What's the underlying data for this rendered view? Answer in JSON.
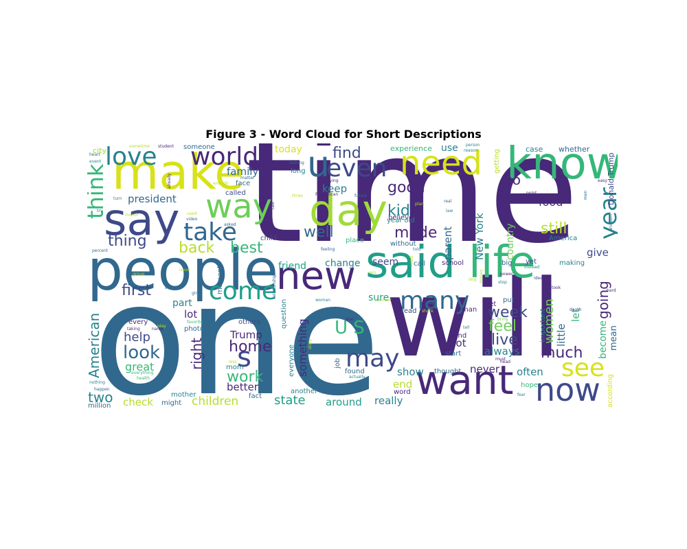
{
  "figure": {
    "title": "Figure 3 - Word Cloud for Short Descriptions"
  },
  "palette": [
    "#440154",
    "#482878",
    "#3e4989",
    "#31688e",
    "#26828e",
    "#1f9e89",
    "#35b779",
    "#6ece58",
    "#b5de2b",
    "#fde725"
  ],
  "words": [
    {
      "id": "time",
      "text": "time",
      "color": "#482878"
    },
    {
      "id": "one",
      "text": "one",
      "color": "#31688e"
    },
    {
      "id": "will",
      "text": "will",
      "color": "#482878"
    },
    {
      "id": "people",
      "text": "people",
      "color": "#31688e"
    },
    {
      "id": "make",
      "text": "make",
      "color": "#d7e219"
    },
    {
      "id": "know",
      "text": "know",
      "color": "#35b779"
    },
    {
      "id": "said",
      "text": "said",
      "color": "#1f9e89"
    },
    {
      "id": "life",
      "text": "life",
      "color": "#35b779"
    },
    {
      "id": "new",
      "text": "new",
      "color": "#482878"
    },
    {
      "id": "say",
      "text": "say",
      "color": "#3e4989"
    },
    {
      "id": "day",
      "text": "day",
      "color": "#a0da39"
    },
    {
      "id": "need",
      "text": "need",
      "color": "#d7e219"
    },
    {
      "id": "want",
      "text": "want",
      "color": "#482878"
    },
    {
      "id": "now",
      "text": "now",
      "color": "#3e4989"
    },
    {
      "id": "way",
      "text": "way",
      "color": "#6ece58"
    },
    {
      "id": "u",
      "text": "u",
      "color": "#31688e"
    },
    {
      "id": "world",
      "text": "world",
      "color": "#482878"
    },
    {
      "id": "love",
      "text": "love",
      "color": "#26828e"
    },
    {
      "id": "even",
      "text": "even",
      "color": "#3e4989"
    },
    {
      "id": "think",
      "text": "think",
      "color": "#35b779"
    },
    {
      "id": "take",
      "text": "take",
      "color": "#31688e"
    },
    {
      "id": "come",
      "text": "come",
      "color": "#1f9e89"
    },
    {
      "id": "many",
      "text": "many",
      "color": "#31688e"
    },
    {
      "id": "may",
      "text": "may",
      "color": "#3e4989"
    },
    {
      "id": "year",
      "text": "year",
      "color": "#26828e"
    },
    {
      "id": "see",
      "text": "see",
      "color": "#d7e219"
    },
    {
      "id": "s",
      "text": "s",
      "color": "#3e4989"
    },
    {
      "id": "us",
      "text": "U S",
      "color": "#35b779"
    },
    {
      "id": "look",
      "text": "look",
      "color": "#31688e"
    },
    {
      "id": "best",
      "text": "best",
      "color": "#35b779"
    },
    {
      "id": "back",
      "text": "back",
      "color": "#b5de2b"
    },
    {
      "id": "thing",
      "text": "thing",
      "color": "#3e4989"
    },
    {
      "id": "first",
      "text": "first",
      "color": "#3e4989"
    },
    {
      "id": "find",
      "text": "find",
      "color": "#3e4989"
    },
    {
      "id": "well",
      "text": "well",
      "color": "#31688e"
    },
    {
      "id": "made",
      "text": "made",
      "color": "#482878"
    },
    {
      "id": "kid",
      "text": "kid",
      "color": "#26828e"
    },
    {
      "id": "good",
      "text": "good",
      "color": "#482878"
    },
    {
      "id": "still",
      "text": "still",
      "color": "#b5de2b"
    },
    {
      "id": "work",
      "text": "work",
      "color": "#35b779"
    },
    {
      "id": "feel",
      "text": "feel",
      "color": "#6ece58"
    },
    {
      "id": "much",
      "text": "much",
      "color": "#482878"
    },
    {
      "id": "live",
      "text": "live",
      "color": "#3e4989"
    },
    {
      "id": "week",
      "text": "week",
      "color": "#3e4989"
    },
    {
      "id": "home",
      "text": "home",
      "color": "#482878"
    },
    {
      "id": "help",
      "text": "help",
      "color": "#3e4989"
    },
    {
      "id": "right",
      "text": "right",
      "color": "#482878"
    },
    {
      "id": "going",
      "text": "going",
      "color": "#482878"
    },
    {
      "id": "american",
      "text": "American",
      "color": "#26828e"
    },
    {
      "id": "two",
      "text": "two",
      "color": "#26828e"
    },
    {
      "id": "children",
      "text": "children",
      "color": "#b5de2b"
    },
    {
      "id": "state",
      "text": "state",
      "color": "#1f9e89"
    },
    {
      "id": "great",
      "text": "great",
      "color": "#35b779"
    },
    {
      "id": "trump",
      "text": "Trump",
      "color": "#482878"
    },
    {
      "id": "family",
      "text": "family",
      "color": "#31688e"
    },
    {
      "id": "president",
      "text": "president",
      "color": "#31688e"
    },
    {
      "id": "today",
      "text": "today",
      "color": "#d7e219"
    },
    {
      "id": "food",
      "text": "food",
      "color": "#482878"
    },
    {
      "id": "keep",
      "text": "keep",
      "color": "#26828e"
    },
    {
      "id": "go",
      "text": "go",
      "color": "#482878"
    },
    {
      "id": "women",
      "text": "women",
      "color": "#6ece58"
    },
    {
      "id": "country",
      "text": "country",
      "color": "#6ece58"
    },
    {
      "id": "new-york",
      "text": "New York",
      "color": "#26828e"
    },
    {
      "id": "parent",
      "text": "parent",
      "color": "#31688e"
    },
    {
      "id": "something",
      "text": "something",
      "color": "#482878"
    },
    {
      "id": "better",
      "text": "better",
      "color": "#482878"
    },
    {
      "id": "show",
      "text": "show",
      "color": "#26828e"
    },
    {
      "id": "end",
      "text": "end",
      "color": "#b5de2b"
    },
    {
      "id": "never",
      "text": "never",
      "color": "#482878"
    },
    {
      "id": "often",
      "text": "often",
      "color": "#26828e"
    },
    {
      "id": "always",
      "text": "always",
      "color": "#26828e"
    },
    {
      "id": "got",
      "text": "got",
      "color": "#482878"
    },
    {
      "id": "give",
      "text": "give",
      "color": "#3e4989"
    },
    {
      "id": "let",
      "text": "let",
      "color": "#35b779"
    },
    {
      "id": "little",
      "text": "little",
      "color": "#31688e"
    },
    {
      "id": "become",
      "text": "become",
      "color": "#35b779"
    },
    {
      "id": "mean",
      "text": "mean",
      "color": "#31688e"
    },
    {
      "id": "donald-trump",
      "text": "Donald Trump",
      "color": "#3e4989"
    },
    {
      "id": "check",
      "text": "check",
      "color": "#b5de2b"
    },
    {
      "id": "really",
      "text": "really",
      "color": "#26828e"
    },
    {
      "id": "around",
      "text": "around",
      "color": "#1f9e89"
    },
    {
      "id": "lot",
      "text": "lot",
      "color": "#482878"
    },
    {
      "id": "part",
      "text": "part",
      "color": "#26828e"
    },
    {
      "id": "friend",
      "text": "friend",
      "color": "#1f9e89"
    },
    {
      "id": "change",
      "text": "change",
      "color": "#26828e"
    },
    {
      "id": "seem",
      "text": "seem",
      "color": "#3e4989"
    },
    {
      "id": "sure",
      "text": "sure",
      "color": "#1f9e89"
    },
    {
      "id": "use",
      "text": "use",
      "color": "#26828e"
    },
    {
      "id": "experience",
      "text": "experience",
      "color": "#35b779"
    },
    {
      "id": "someone",
      "text": "someone",
      "color": "#31688e"
    },
    {
      "id": "city",
      "text": "city",
      "color": "#a0da39"
    },
    {
      "id": "case",
      "text": "case",
      "color": "#26828e"
    },
    {
      "id": "whether",
      "text": "whether",
      "color": "#31688e"
    },
    {
      "id": "million",
      "text": "million",
      "color": "#31688e"
    },
    {
      "id": "mother",
      "text": "mother",
      "color": "#26828e"
    },
    {
      "id": "might",
      "text": "might",
      "color": "#31688e"
    },
    {
      "id": "fact",
      "text": "fact",
      "color": "#31688e"
    },
    {
      "id": "another",
      "text": "another",
      "color": "#26828e"
    },
    {
      "id": "called",
      "text": "called",
      "color": "#3e4989"
    },
    {
      "id": "face",
      "text": "face",
      "color": "#31688e"
    },
    {
      "id": "long",
      "text": "long",
      "color": "#26828e"
    },
    {
      "id": "believe",
      "text": "believe",
      "color": "#482878"
    },
    {
      "id": "year-old",
      "text": "year old",
      "color": "#26828e"
    },
    {
      "id": "without",
      "text": "without",
      "color": "#31688e"
    },
    {
      "id": "place",
      "text": "place",
      "color": "#35b779"
    },
    {
      "id": "call",
      "text": "call",
      "color": "#31688e"
    },
    {
      "id": "school",
      "text": "school",
      "color": "#482878"
    },
    {
      "id": "big",
      "text": "big",
      "color": "#31688e"
    },
    {
      "id": "yet",
      "text": "yet",
      "color": "#3e4989"
    },
    {
      "id": "making",
      "text": "making",
      "color": "#26828e"
    },
    {
      "id": "america",
      "text": "America",
      "color": "#26828e"
    },
    {
      "id": "put",
      "text": "put",
      "color": "#31688e"
    },
    {
      "id": "set",
      "text": "set",
      "color": "#482878"
    },
    {
      "id": "read",
      "text": "read",
      "color": "#3e4989"
    },
    {
      "id": "man",
      "text": "man",
      "color": "#482878"
    },
    {
      "id": "mind",
      "text": "mind",
      "color": "#482878"
    },
    {
      "id": "start",
      "text": "start",
      "color": "#31688e"
    },
    {
      "id": "thought",
      "text": "thought",
      "color": "#31688e"
    },
    {
      "id": "found",
      "text": "found",
      "color": "#31688e"
    },
    {
      "id": "word",
      "text": "word",
      "color": "#482878"
    },
    {
      "id": "others",
      "text": "others",
      "color": "#3e4989"
    },
    {
      "id": "child",
      "text": "child",
      "color": "#3e4989"
    },
    {
      "id": "mom",
      "text": "mom",
      "color": "#26828e"
    },
    {
      "id": "photo",
      "text": "photo",
      "color": "#31688e"
    },
    {
      "id": "every",
      "text": "every",
      "color": "#482878"
    },
    {
      "id": "moment",
      "text": "moment",
      "color": "#31688e"
    },
    {
      "id": "question",
      "text": "question",
      "color": "#26828e"
    },
    {
      "id": "everyone",
      "text": "everyone",
      "color": "#26828e"
    },
    {
      "id": "important",
      "text": "important",
      "color": "#26828e"
    },
    {
      "id": "according",
      "text": "according",
      "color": "#d7e219"
    },
    {
      "id": "getting",
      "text": "getting",
      "color": "#b5de2b"
    },
    {
      "id": "hope",
      "text": "hope",
      "color": "#35b779"
    },
    {
      "id": "job",
      "text": "job",
      "color": "#31688e"
    },
    {
      "id": "student",
      "text": "student",
      "color": "#482878"
    },
    {
      "id": "person",
      "text": "person",
      "color": "#26828e"
    },
    {
      "id": "reason",
      "text": "reason",
      "color": "#26828e"
    },
    {
      "id": "trying",
      "text": "trying",
      "color": "#482878"
    },
    {
      "id": "republican",
      "text": "Republican",
      "color": "#482878"
    },
    {
      "id": "future",
      "text": "future",
      "color": "#31688e"
    },
    {
      "id": "real",
      "text": "real",
      "color": "#31688e"
    },
    {
      "id": "law",
      "text": "law",
      "color": "#26828e"
    },
    {
      "id": "told",
      "text": "told",
      "color": "#26828e"
    },
    {
      "id": "power",
      "text": "power",
      "color": "#482878"
    },
    {
      "id": "instead",
      "text": "instead",
      "color": "#26828e"
    },
    {
      "id": "stop",
      "text": "stop",
      "color": "#26828e"
    },
    {
      "id": "took",
      "text": "took",
      "color": "#482878"
    },
    {
      "id": "idea",
      "text": "idea",
      "color": "#3e4989"
    },
    {
      "id": "point",
      "text": "point",
      "color": "#482878"
    },
    {
      "id": "easy",
      "text": "easy",
      "color": "#482878"
    },
    {
      "id": "hard",
      "text": "hard",
      "color": "#482878"
    },
    {
      "id": "death",
      "text": "death",
      "color": "#3e4989"
    },
    {
      "id": "bring",
      "text": "bring",
      "color": "#6ece58"
    },
    {
      "id": "must",
      "text": "must",
      "color": "#482878"
    },
    {
      "id": "head",
      "text": "head",
      "color": "#482878"
    },
    {
      "id": "fear",
      "text": "fear",
      "color": "#26828e"
    },
    {
      "id": "tell",
      "text": "tell",
      "color": "#26828e"
    },
    {
      "id": "top",
      "text": "top",
      "color": "#26828e"
    },
    {
      "id": "share",
      "text": "share",
      "color": "#b5de2b"
    },
    {
      "id": "star",
      "text": "star",
      "color": "#482878"
    },
    {
      "id": "woman",
      "text": "woman",
      "color": "#26828e"
    },
    {
      "id": "story",
      "text": "story",
      "color": "#b5de2b"
    },
    {
      "id": "actually",
      "text": "actually",
      "color": "#26828e"
    },
    {
      "id": "summer",
      "text": "summer",
      "color": "#b5de2b"
    },
    {
      "id": "feeling",
      "text": "feeling",
      "color": "#31688e"
    },
    {
      "id": "talk",
      "text": "talk",
      "color": "#3e4989"
    },
    {
      "id": "plan",
      "text": "plan",
      "color": "#b5de2b"
    },
    {
      "id": "three",
      "text": "three",
      "color": "#b5de2b"
    },
    {
      "id": "matter",
      "text": "matter",
      "color": "#31688e"
    },
    {
      "id": "enough",
      "text": "enough",
      "color": "#b5de2b"
    },
    {
      "id": "used",
      "text": "used",
      "color": "#b5de2b"
    },
    {
      "id": "video",
      "text": "video",
      "color": "#31688e"
    },
    {
      "id": "asked",
      "text": "asked",
      "color": "#31688e"
    },
    {
      "id": "turn",
      "text": "turn",
      "color": "#26828e"
    },
    {
      "id": "try",
      "text": "try",
      "color": "#31688e"
    },
    {
      "id": "percent",
      "text": "percent",
      "color": "#31688e"
    },
    {
      "id": "group",
      "text": "group",
      "color": "#b5de2b"
    },
    {
      "id": "issue",
      "text": "issue",
      "color": "#b5de2b"
    },
    {
      "id": "support",
      "text": "support",
      "color": "#31688e"
    },
    {
      "id": "girl",
      "text": "girl",
      "color": "#31688e"
    },
    {
      "id": "relationship",
      "text": "relationship",
      "color": "#31688e"
    },
    {
      "id": "play",
      "text": "play",
      "color": "#b5de2b"
    },
    {
      "id": "favorite",
      "text": "favorite",
      "color": "#35b779"
    },
    {
      "id": "taking",
      "text": "taking",
      "color": "#482878"
    },
    {
      "id": "name",
      "text": "name",
      "color": "#482878"
    },
    {
      "id": "everything",
      "text": "everything",
      "color": "#35b779"
    },
    {
      "id": "health",
      "text": "health",
      "color": "#35b779"
    },
    {
      "id": "less",
      "text": "less",
      "color": "#b5de2b"
    },
    {
      "id": "nothing",
      "text": "nothing",
      "color": "#26828e"
    },
    {
      "id": "happen",
      "text": "happen",
      "color": "#31688e"
    },
    {
      "id": "heart",
      "text": "heart",
      "color": "#31688e"
    },
    {
      "id": "event",
      "text": "event",
      "color": "#26828e"
    },
    {
      "id": "sometime",
      "text": "sometime",
      "color": "#b5de2b"
    },
    {
      "id": "already",
      "text": "already",
      "color": "#482878"
    },
    {
      "id": "looking",
      "text": "looking",
      "color": "#31688e"
    },
    {
      "id": "month",
      "text": "month",
      "color": "#b5de2b"
    },
    {
      "id": "problem",
      "text": "problem",
      "color": "#31688e"
    },
    {
      "id": "men",
      "text": "men",
      "color": "#31688e"
    },
    {
      "id": "cost",
      "text": "cost",
      "color": "#b5de2b"
    },
    {
      "id": "money",
      "text": "money",
      "color": "#b5de2b"
    },
    {
      "id": "win",
      "text": "win",
      "color": "#b5de2b"
    },
    {
      "id": "dog",
      "text": "dog",
      "color": "#b5de2b"
    }
  ]
}
